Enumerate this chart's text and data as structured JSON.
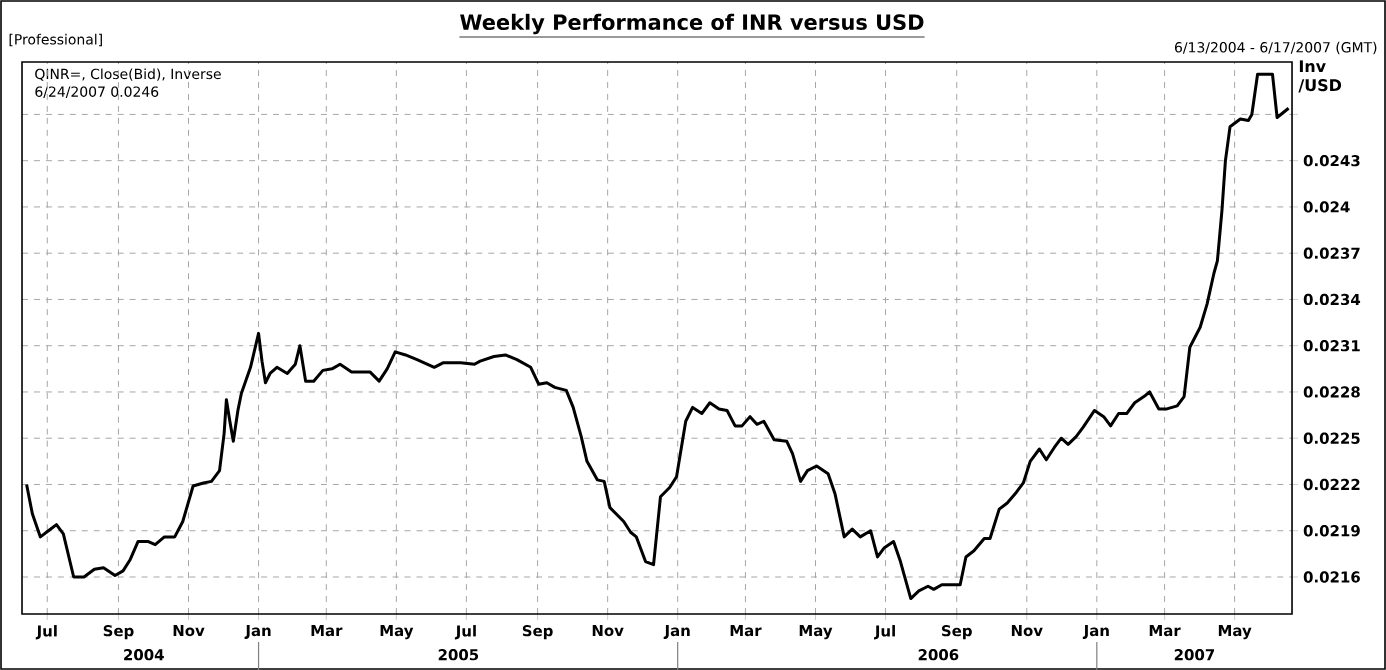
{
  "chart_data": {
    "type": "line",
    "title": "Weekly Performance of INR versus USD",
    "subtitle": "6/13/2004 - 6/17/2007 (GMT)",
    "ylabel": "Inv /USD",
    "annotations": [
      "[Professional]",
      "QINR=, Close(Bid), Inverse",
      "6/24/2007 0.0246"
    ],
    "x": [
      "2004-06-13",
      "2004-06-18",
      "2004-06-25",
      "2004-07-02",
      "2004-07-09",
      "2004-07-15",
      "2004-07-24",
      "2004-08-02",
      "2004-08-11",
      "2004-08-19",
      "2004-08-29",
      "2004-09-05",
      "2004-09-11",
      "2004-09-18",
      "2004-09-27",
      "2004-10-03",
      "2004-10-11",
      "2004-10-20",
      "2004-10-27",
      "2004-11-05",
      "2004-11-14",
      "2004-11-21",
      "2004-11-28",
      "2004-12-02",
      "2004-12-04",
      "2004-12-07",
      "2004-12-10",
      "2004-12-14",
      "2004-12-17",
      "2004-12-25",
      "2005-01-01",
      "2005-01-04",
      "2005-01-07",
      "2005-01-11",
      "2005-01-17",
      "2005-01-26",
      "2005-02-02",
      "2005-02-06",
      "2005-02-11",
      "2005-02-18",
      "2005-02-26",
      "2005-03-06",
      "2005-03-13",
      "2005-03-23",
      "2005-04-08",
      "2005-04-16",
      "2005-04-23",
      "2005-04-30",
      "2005-05-09",
      "2005-05-19",
      "2005-06-03",
      "2005-06-11",
      "2005-06-26",
      "2005-07-08",
      "2005-07-13",
      "2005-07-25",
      "2005-08-04",
      "2005-08-14",
      "2005-08-26",
      "2005-09-02",
      "2005-09-09",
      "2005-09-16",
      "2005-09-26",
      "2005-10-02",
      "2005-10-09",
      "2005-10-14",
      "2005-10-23",
      "2005-10-29",
      "2005-11-03",
      "2005-11-15",
      "2005-11-21",
      "2005-11-26",
      "2005-12-04",
      "2005-12-11",
      "2005-12-17",
      "2005-12-25",
      "2005-12-31",
      "2006-01-08",
      "2006-01-14",
      "2006-01-22",
      "2006-01-29",
      "2006-02-06",
      "2006-02-13",
      "2006-02-20",
      "2006-02-26",
      "2006-03-05",
      "2006-03-11",
      "2006-03-17",
      "2006-03-26",
      "2006-04-06",
      "2006-04-11",
      "2006-04-18",
      "2006-04-24",
      "2006-05-02",
      "2006-05-12",
      "2006-05-18",
      "2006-05-26",
      "2006-06-02",
      "2006-06-09",
      "2006-06-18",
      "2006-06-24",
      "2006-06-30",
      "2006-07-08",
      "2006-07-14",
      "2006-07-23",
      "2006-07-30",
      "2006-08-07",
      "2006-08-12",
      "2006-08-19",
      "2006-09-04",
      "2006-09-09",
      "2006-09-16",
      "2006-09-25",
      "2006-09-30",
      "2006-10-08",
      "2006-10-15",
      "2006-10-23",
      "2006-10-29",
      "2006-11-04",
      "2006-11-12",
      "2006-11-18",
      "2006-11-25",
      "2006-12-01",
      "2006-12-07",
      "2006-12-14",
      "2006-12-20",
      "2006-12-30",
      "2007-01-07",
      "2007-01-13",
      "2007-01-20",
      "2007-01-27",
      "2007-02-03",
      "2007-02-11",
      "2007-02-16",
      "2007-02-24",
      "2007-03-03",
      "2007-03-12",
      "2007-03-18",
      "2007-03-23",
      "2007-04-01",
      "2007-04-07",
      "2007-04-13",
      "2007-04-16",
      "2007-04-20",
      "2007-04-23",
      "2007-04-27",
      "2007-05-06",
      "2007-05-13",
      "2007-05-16",
      "2007-05-21",
      "2007-06-03",
      "2007-06-07",
      "2007-06-17"
    ],
    "series": [
      {
        "color": "#000000",
        "values": [
          0.0222,
          0.02201,
          0.02186,
          0.0219,
          0.02194,
          0.02188,
          0.0216,
          0.0216,
          0.02165,
          0.02166,
          0.02161,
          0.02164,
          0.02171,
          0.02183,
          0.02183,
          0.02181,
          0.02186,
          0.02186,
          0.02196,
          0.02219,
          0.02221,
          0.02222,
          0.02229,
          0.02253,
          0.02275,
          0.02261,
          0.02248,
          0.02268,
          0.02279,
          0.02296,
          0.02318,
          0.023,
          0.02286,
          0.02292,
          0.02296,
          0.02292,
          0.02298,
          0.0231,
          0.02287,
          0.02287,
          0.02294,
          0.02295,
          0.02298,
          0.02293,
          0.02293,
          0.02287,
          0.02295,
          0.02306,
          0.02304,
          0.02301,
          0.02296,
          0.02299,
          0.02299,
          0.02298,
          0.023,
          0.02303,
          0.02304,
          0.02301,
          0.02296,
          0.02285,
          0.02286,
          0.02283,
          0.02281,
          0.0227,
          0.02251,
          0.02235,
          0.02223,
          0.02222,
          0.02205,
          0.02196,
          0.02189,
          0.02186,
          0.0217,
          0.02168,
          0.02212,
          0.02218,
          0.02225,
          0.02261,
          0.0227,
          0.02266,
          0.02273,
          0.02269,
          0.02268,
          0.02258,
          0.02258,
          0.02264,
          0.02259,
          0.02261,
          0.02249,
          0.02248,
          0.0224,
          0.02222,
          0.02229,
          0.02232,
          0.02227,
          0.02214,
          0.02186,
          0.02191,
          0.02186,
          0.0219,
          0.02173,
          0.02179,
          0.02183,
          0.0217,
          0.02146,
          0.02151,
          0.02154,
          0.02152,
          0.02155,
          0.02155,
          0.02173,
          0.02177,
          0.02185,
          0.02185,
          0.02204,
          0.02208,
          0.02215,
          0.02221,
          0.02235,
          0.02243,
          0.02236,
          0.02244,
          0.0225,
          0.02246,
          0.02251,
          0.02257,
          0.02268,
          0.02264,
          0.02258,
          0.02266,
          0.02266,
          0.02273,
          0.02277,
          0.0228,
          0.02269,
          0.02269,
          0.02271,
          0.02277,
          0.02309,
          0.02322,
          0.02337,
          0.02357,
          0.02365,
          0.02398,
          0.0243,
          0.02452,
          0.02457,
          0.02456,
          0.0246,
          0.02486,
          0.02486,
          0.02458,
          0.02464
        ]
      }
    ],
    "xlim": [
      "2004-06-09",
      "2007-06-20"
    ],
    "xticks": [
      {
        "value": "2004-07-01",
        "label": "Jul"
      },
      {
        "value": "2004-09-01",
        "label": "Sep"
      },
      {
        "value": "2004-11-01",
        "label": "Nov"
      },
      {
        "value": "2005-01-01",
        "label": "Jan"
      },
      {
        "value": "2005-03-01",
        "label": "Mar"
      },
      {
        "value": "2005-05-01",
        "label": "May"
      },
      {
        "value": "2005-07-01",
        "label": "Jul"
      },
      {
        "value": "2005-09-01",
        "label": "Sep"
      },
      {
        "value": "2005-11-01",
        "label": "Nov"
      },
      {
        "value": "2006-01-01",
        "label": "Jan"
      },
      {
        "value": "2006-03-01",
        "label": "Mar"
      },
      {
        "value": "2006-05-01",
        "label": "May"
      },
      {
        "value": "2006-07-01",
        "label": "Jul"
      },
      {
        "value": "2006-09-01",
        "label": "Sep"
      },
      {
        "value": "2006-11-01",
        "label": "Nov"
      },
      {
        "value": "2007-01-01",
        "label": "Jan"
      },
      {
        "value": "2007-03-01",
        "label": "Mar"
      },
      {
        "value": "2007-05-01",
        "label": "May"
      }
    ],
    "x2lim": [
      "2004-06-09",
      "2007-06-20"
    ],
    "x2ticks": [
      {
        "value": "2004-09-23",
        "label": "2004"
      },
      {
        "value": "2005-01-01",
        "label": null
      },
      {
        "value": "2005-06-24",
        "label": "2005"
      },
      {
        "value": "2006-01-01",
        "label": null
      },
      {
        "value": "2006-08-16",
        "label": "2006"
      },
      {
        "value": "2007-01-01",
        "label": null
      },
      {
        "value": "2007-03-27",
        "label": "2007"
      }
    ],
    "ylim": [
      0.02136,
      0.02494
    ],
    "yticks": [
      0.0216,
      0.0219,
      0.0222,
      0.0225,
      0.0228,
      0.0231,
      0.0234,
      0.0237,
      0.024,
      0.0243,
      {
        "value": 0.0246,
        "label": null
      }
    ],
    "grid": true,
    "marker": "none",
    "line_style": "solid"
  }
}
